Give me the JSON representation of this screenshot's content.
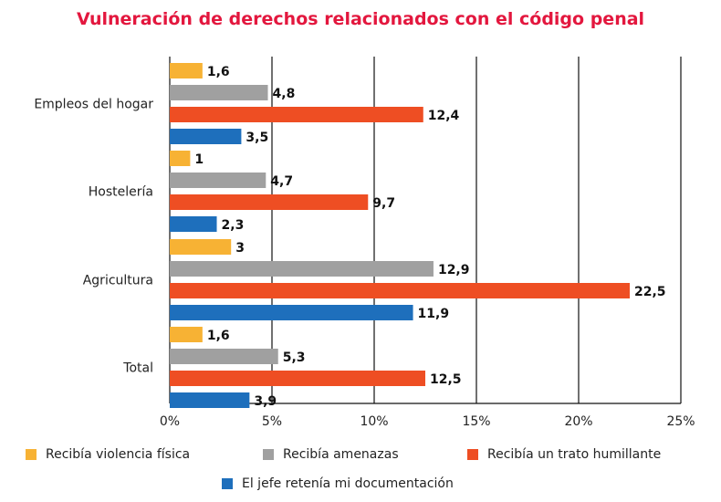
{
  "chart_data": {
    "type": "bar",
    "orientation": "horizontal",
    "title": "Vulneración de derechos relacionados con el código penal",
    "categories": [
      "Empleos del hogar",
      "Hostelería",
      "Agricultura",
      "Total"
    ],
    "series": [
      {
        "name": "Recibía violencia física",
        "color": "#f7b234",
        "values": [
          1.6,
          1,
          3,
          1.6
        ],
        "labels": [
          "1,6",
          "1",
          "3",
          "1,6"
        ]
      },
      {
        "name": "Recibía amenazas",
        "color": "#a0a0a0",
        "values": [
          4.8,
          4.7,
          12.9,
          5.3
        ],
        "labels": [
          "4,8",
          "4,7",
          "12,9",
          "5,3"
        ]
      },
      {
        "name": "Recibía un trato humillante",
        "color": "#ee4e23",
        "values": [
          12.4,
          9.7,
          22.5,
          12.5
        ],
        "labels": [
          "12,4",
          "9,7",
          "22,5",
          "12,5"
        ]
      },
      {
        "name": "El jefe retenía mi documentación",
        "color": "#1e6fbc",
        "values": [
          3.5,
          2.3,
          11.9,
          3.9
        ],
        "labels": [
          "3,5",
          "2,3",
          "11,9",
          "3,9"
        ]
      }
    ],
    "xlim": [
      0,
      25
    ],
    "xticks": [
      "0%",
      "5%",
      "10%",
      "15%",
      "20%",
      "25%"
    ],
    "grid": true,
    "legend_position": "bottom"
  }
}
